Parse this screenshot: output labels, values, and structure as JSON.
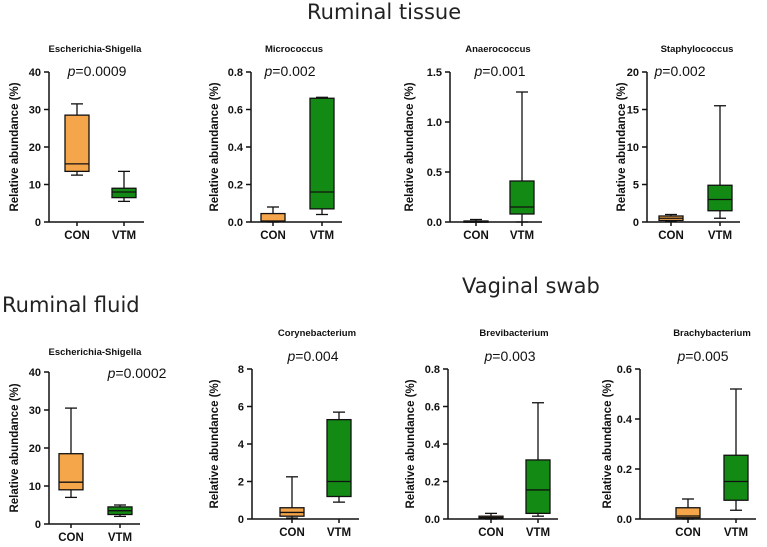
{
  "sections": {
    "ruminal_tissue": "Ruminal tissue",
    "ruminal_fluid": "Ruminal fluid",
    "vaginal_swab": "Vaginal swab"
  },
  "colors": {
    "con": "#f5a54a",
    "vtm": "#138a13",
    "line": "#111111",
    "text": "#111111"
  },
  "chart_data": [
    {
      "type": "box",
      "section": "Ruminal tissue",
      "title": "Escherichia-Shigella",
      "p_prefix": "p",
      "p_value": "=0.0009",
      "ylabel": "Relative abundance (%)",
      "categories": [
        "CON",
        "VTM"
      ],
      "ylim": [
        0,
        40
      ],
      "yticks": [
        0,
        10,
        20,
        30,
        40
      ],
      "ytick_labels": [
        "0",
        "10",
        "20",
        "30",
        "40"
      ],
      "boxes": [
        {
          "group": "CON",
          "min": 12.5,
          "q1": 13.5,
          "median": 15.5,
          "q3": 28.5,
          "max": 31.5
        },
        {
          "group": "VTM",
          "min": 5.5,
          "q1": 6.5,
          "median": 8.0,
          "q3": 9.0,
          "max": 13.5
        }
      ]
    },
    {
      "type": "box",
      "section": "Ruminal tissue",
      "title": "Micrococcus",
      "p_prefix": "p",
      "p_value": "=0.002",
      "ylabel": "Relative abundance (%)",
      "categories": [
        "CON",
        "VTM"
      ],
      "ylim": [
        0,
        0.8
      ],
      "yticks": [
        0,
        0.2,
        0.4,
        0.6,
        0.8
      ],
      "ytick_labels": [
        "0.0",
        "0.2",
        "0.4",
        "0.6",
        "0.8"
      ],
      "boxes": [
        {
          "group": "CON",
          "min": 0.0,
          "q1": 0.002,
          "median": 0.005,
          "q3": 0.045,
          "max": 0.08
        },
        {
          "group": "VTM",
          "min": 0.04,
          "q1": 0.07,
          "median": 0.16,
          "q3": 0.66,
          "max": 0.665
        }
      ]
    },
    {
      "type": "box",
      "section": "Ruminal tissue",
      "title": "Anaerococcus",
      "p_prefix": "p",
      "p_value": "=0.001",
      "ylabel": "Relative abundance (%)",
      "categories": [
        "CON",
        "VTM"
      ],
      "ylim": [
        0,
        1.5
      ],
      "yticks": [
        0,
        0.5,
        1.0,
        1.5
      ],
      "ytick_labels": [
        "0.0",
        "0.5",
        "1.0",
        "1.5"
      ],
      "boxes": [
        {
          "group": "CON",
          "min": 0.0,
          "q1": 0.003,
          "median": 0.006,
          "q3": 0.01,
          "max": 0.025
        },
        {
          "group": "VTM",
          "min": 0.0,
          "q1": 0.08,
          "median": 0.15,
          "q3": 0.41,
          "max": 1.3
        }
      ]
    },
    {
      "type": "box",
      "section": "Ruminal tissue",
      "title": "Staphylococcus",
      "p_prefix": "p",
      "p_value": "=0.002",
      "ylabel": "Relative abundance (%)",
      "categories": [
        "CON",
        "VTM"
      ],
      "ylim": [
        0,
        20
      ],
      "yticks": [
        0,
        5,
        10,
        15,
        20
      ],
      "ytick_labels": [
        "0",
        "5",
        "10",
        "15",
        "20"
      ],
      "boxes": [
        {
          "group": "CON",
          "min": 0.1,
          "q1": 0.2,
          "median": 0.5,
          "q3": 0.8,
          "max": 1.0
        },
        {
          "group": "VTM",
          "min": 0.5,
          "q1": 1.5,
          "median": 3.0,
          "q3": 4.9,
          "max": 15.5
        }
      ]
    },
    {
      "type": "box",
      "section": "Ruminal fluid",
      "title": "Escherichia-Shigella",
      "p_prefix": "p",
      "p_value": "=0.0002",
      "ylabel": "Relative abundance (%)",
      "categories": [
        "CON",
        "VTM"
      ],
      "ylim": [
        0,
        40
      ],
      "yticks": [
        0,
        10,
        20,
        30,
        40
      ],
      "ytick_labels": [
        "0",
        "10",
        "20",
        "30",
        "40"
      ],
      "boxes": [
        {
          "group": "CON",
          "min": 7.0,
          "q1": 9.0,
          "median": 11.0,
          "q3": 18.5,
          "max": 30.5
        },
        {
          "group": "VTM",
          "min": 2.0,
          "q1": 2.5,
          "median": 3.5,
          "q3": 4.5,
          "max": 5.0
        }
      ]
    },
    {
      "type": "box",
      "section": "Vaginal swab",
      "title": "Corynebacterium",
      "p_prefix": "p",
      "p_value": "=0.004",
      "ylabel": "Relative abundance (%)",
      "categories": [
        "CON",
        "VTM"
      ],
      "ylim": [
        0,
        8
      ],
      "yticks": [
        0,
        2,
        4,
        6,
        8
      ],
      "ytick_labels": [
        "0",
        "2",
        "4",
        "6",
        "8"
      ],
      "boxes": [
        {
          "group": "CON",
          "min": 0.05,
          "q1": 0.15,
          "median": 0.35,
          "q3": 0.6,
          "max": 2.25
        },
        {
          "group": "VTM",
          "min": 0.9,
          "q1": 1.2,
          "median": 2.0,
          "q3": 5.3,
          "max": 5.7
        }
      ]
    },
    {
      "type": "box",
      "section": "Vaginal swab",
      "title": "Brevibacterium",
      "p_prefix": "p",
      "p_value": "=0.003",
      "ylabel": "Relative abundance (%)",
      "categories": [
        "CON",
        "VTM"
      ],
      "ylim": [
        0,
        0.8
      ],
      "yticks": [
        0,
        0.2,
        0.4,
        0.6,
        0.8
      ],
      "ytick_labels": [
        "0.0",
        "0.2",
        "0.4",
        "0.6",
        "0.8"
      ],
      "boxes": [
        {
          "group": "CON",
          "min": 0.0,
          "q1": 0.003,
          "median": 0.008,
          "q3": 0.015,
          "max": 0.03
        },
        {
          "group": "VTM",
          "min": 0.015,
          "q1": 0.03,
          "median": 0.155,
          "q3": 0.315,
          "max": 0.62
        }
      ]
    },
    {
      "type": "box",
      "section": "Vaginal swab",
      "title": "Brachybacterium",
      "p_prefix": "p",
      "p_value": "=0.005",
      "ylabel": "Relative abundance (%)",
      "categories": [
        "CON",
        "VTM"
      ],
      "ylim": [
        0,
        0.6
      ],
      "yticks": [
        0,
        0.2,
        0.4,
        0.6
      ],
      "ytick_labels": [
        "0.0",
        "0.2",
        "0.4",
        "0.6"
      ],
      "boxes": [
        {
          "group": "CON",
          "min": 0.0,
          "q1": 0.005,
          "median": 0.012,
          "q3": 0.045,
          "max": 0.08
        },
        {
          "group": "VTM",
          "min": 0.035,
          "q1": 0.075,
          "median": 0.15,
          "q3": 0.255,
          "max": 0.52
        }
      ]
    }
  ]
}
